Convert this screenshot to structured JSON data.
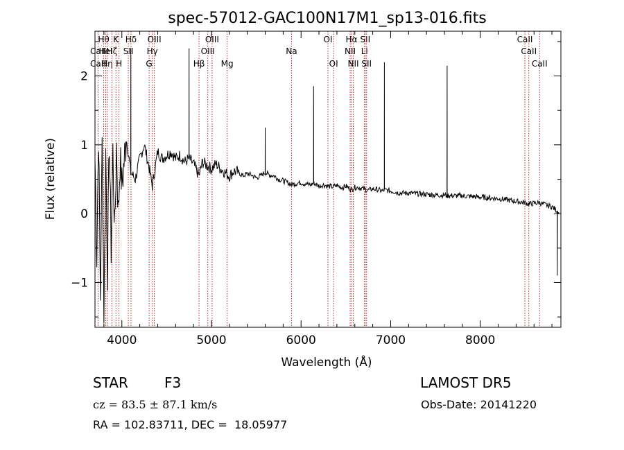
{
  "chart_data": {
    "type": "line",
    "title": "spec-57012-GAC100N17M1_sp13-016.fits",
    "xlabel": "Wavelength (Å)",
    "ylabel": "Flux (relative)",
    "xlim": [
      3700,
      8900
    ],
    "ylim": [
      -1.65,
      2.65
    ],
    "xticks": [
      4000,
      5000,
      6000,
      7000,
      8000
    ],
    "yticks": [
      -1,
      0,
      1,
      2
    ],
    "xtick_labels": [
      "4000",
      "5000",
      "6000",
      "7000",
      "8000"
    ],
    "ytick_labels": [
      "−1",
      "0",
      "1",
      "2"
    ],
    "grid": false,
    "series": [
      {
        "color": "#000000",
        "x": [
          3700,
          3720,
          3740,
          3760,
          3780,
          3800,
          3820,
          3840,
          3860,
          3880,
          3900,
          3920,
          3940,
          3960,
          3980,
          4000,
          4050,
          4100,
          4150,
          4200,
          4250,
          4300,
          4340,
          4400,
          4450,
          4500,
          4550,
          4600,
          4650,
          4700,
          4750,
          4800,
          4861,
          4900,
          4950,
          5000,
          5050,
          5100,
          5150,
          5200,
          5250,
          5300,
          5350,
          5400,
          5450,
          5500,
          5550,
          5600,
          5650,
          5700,
          5750,
          5800,
          5850,
          5893,
          5950,
          6000,
          6050,
          6100,
          6150,
          6200,
          6250,
          6300,
          6350,
          6400,
          6450,
          6500,
          6563,
          6600,
          6650,
          6700,
          6750,
          6800,
          6850,
          6900,
          6950,
          7000,
          7100,
          7200,
          7300,
          7400,
          7500,
          7600,
          7700,
          7800,
          7900,
          8000,
          8100,
          8200,
          8300,
          8400,
          8500,
          8542,
          8600,
          8662,
          8700,
          8750,
          8800,
          8850,
          8880
        ],
        "y": [
          0.8,
          -0.6,
          1.2,
          -1.2,
          1.0,
          -1.4,
          0.9,
          -0.8,
          1.1,
          -0.5,
          0.9,
          -0.3,
          1.0,
          0.0,
          0.8,
          0.4,
          1.1,
          0.6,
          0.5,
          0.8,
          1.0,
          0.7,
          0.4,
          0.9,
          0.8,
          0.85,
          0.9,
          0.8,
          0.85,
          0.75,
          0.8,
          0.72,
          0.55,
          0.75,
          0.7,
          0.65,
          0.72,
          0.66,
          0.6,
          0.55,
          0.62,
          0.6,
          0.55,
          0.58,
          0.56,
          0.52,
          0.55,
          0.6,
          0.56,
          0.55,
          0.5,
          0.48,
          0.45,
          0.42,
          0.44,
          0.45,
          0.43,
          0.42,
          0.44,
          0.4,
          0.42,
          0.4,
          0.39,
          0.41,
          0.38,
          0.4,
          0.35,
          0.38,
          0.38,
          0.36,
          0.34,
          0.36,
          0.35,
          0.33,
          0.34,
          0.33,
          0.3,
          0.3,
          0.29,
          0.28,
          0.27,
          0.27,
          0.26,
          0.26,
          0.25,
          0.24,
          0.23,
          0.22,
          0.2,
          0.18,
          0.16,
          0.14,
          0.15,
          0.16,
          0.14,
          0.12,
          0.1,
          0.05,
          0.02
        ],
        "spikes": [
          {
            "x": 4100,
            "y": 2.4
          },
          {
            "x": 4750,
            "y": 2.4
          },
          {
            "x": 5600,
            "y": 1.25
          },
          {
            "x": 6140,
            "y": 1.85
          },
          {
            "x": 6930,
            "y": 2.2
          },
          {
            "x": 7630,
            "y": 2.15
          },
          {
            "x": 8860,
            "y": -0.9
          }
        ]
      }
    ],
    "line_markers": [
      {
        "x": 3734,
        "labels": [
          "CaII",
          "CaII"
        ],
        "rows": [
          1,
          2
        ]
      },
      {
        "x": 3797,
        "labels": [
          "Hθ"
        ],
        "rows": [
          0
        ]
      },
      {
        "x": 3820,
        "labels": [
          "HeI"
        ],
        "rows": [
          1
        ]
      },
      {
        "x": 3835,
        "labels": [
          "Hη"
        ],
        "rows": [
          2
        ]
      },
      {
        "x": 3889,
        "labels": [
          "Hζ"
        ],
        "rows": [
          1
        ]
      },
      {
        "x": 3934,
        "labels": [
          "K"
        ],
        "rows": [
          0
        ]
      },
      {
        "x": 3968,
        "labels": [
          "H"
        ],
        "rows": [
          2
        ]
      },
      {
        "x": 4102,
        "labels": [
          "Hδ"
        ],
        "rows": [
          0
        ]
      },
      {
        "x": 4072,
        "labels": [
          "SII"
        ],
        "rows": [
          1
        ]
      },
      {
        "x": 4304,
        "labels": [
          "G"
        ],
        "rows": [
          2
        ]
      },
      {
        "x": 4340,
        "labels": [
          "Hγ"
        ],
        "rows": [
          1
        ]
      },
      {
        "x": 4363,
        "labels": [
          "OIII"
        ],
        "rows": [
          0
        ]
      },
      {
        "x": 4861,
        "labels": [
          "Hβ"
        ],
        "rows": [
          2
        ]
      },
      {
        "x": 4959,
        "labels": [
          "OIII"
        ],
        "rows": [
          1
        ]
      },
      {
        "x": 5007,
        "labels": [
          "OIII"
        ],
        "rows": [
          0
        ]
      },
      {
        "x": 5175,
        "labels": [
          "Mg"
        ],
        "rows": [
          2
        ]
      },
      {
        "x": 5893,
        "labels": [
          "Na"
        ],
        "rows": [
          1
        ]
      },
      {
        "x": 6300,
        "labels": [
          "OI"
        ],
        "rows": [
          0
        ]
      },
      {
        "x": 6363,
        "labels": [
          "OI"
        ],
        "rows": [
          2
        ]
      },
      {
        "x": 6548,
        "labels": [
          "NII"
        ],
        "rows": [
          1
        ]
      },
      {
        "x": 6563,
        "labels": [
          "Hα"
        ],
        "rows": [
          0
        ]
      },
      {
        "x": 6583,
        "labels": [
          "NII"
        ],
        "rows": [
          2
        ]
      },
      {
        "x": 6708,
        "labels": [
          "Li"
        ],
        "rows": [
          1
        ]
      },
      {
        "x": 6716,
        "labels": [
          "SII"
        ],
        "rows": [
          0
        ]
      },
      {
        "x": 6731,
        "labels": [
          "SII"
        ],
        "rows": [
          2
        ]
      },
      {
        "x": 8498,
        "labels": [
          "CaII"
        ],
        "rows": [
          0
        ]
      },
      {
        "x": 8542,
        "labels": [
          "CaII"
        ],
        "rows": [
          1
        ]
      },
      {
        "x": 8662,
        "labels": [
          "CaII"
        ],
        "rows": [
          2
        ]
      }
    ]
  },
  "info": {
    "class": "STAR",
    "subclass": "F3",
    "survey": "LAMOST DR5",
    "cz": "cz = 83.5 ± 87.1 km/s",
    "obs_date": "Obs-Date: 20141220",
    "radec": "RA = 102.83711, DEC =  18.05977"
  },
  "colors": {
    "marker_line": "#b22222",
    "spectrum": "#000000"
  }
}
